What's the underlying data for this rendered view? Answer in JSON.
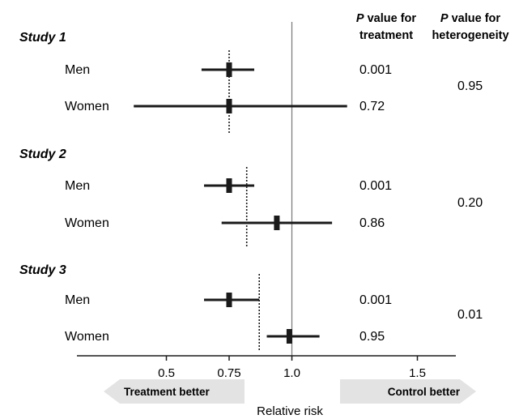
{
  "chart_data": {
    "type": "forest",
    "x_axis": {
      "label": "Relative risk",
      "ticks": [
        0.5,
        0.75,
        1.0,
        1.5
      ],
      "tick_labels": [
        "0.5",
        "0.75",
        "1.0",
        "1.5"
      ],
      "range": [
        0.25,
        1.65
      ],
      "reference_line": 1.0
    },
    "direction_labels": {
      "left": "Treatment better",
      "right": "Control better"
    },
    "column_headers": {
      "treatment": {
        "p": "P",
        "line1": " value for",
        "line2": "treatment"
      },
      "heterogeneity": {
        "p": "P",
        "line1": " value for",
        "line2": "heterogeneity"
      }
    },
    "studies": [
      {
        "title": "Study 1",
        "overall_estimate": 0.75,
        "p_heterogeneity": "0.95",
        "subgroups": [
          {
            "label": "Men",
            "estimate": 0.75,
            "ci_low": 0.64,
            "ci_high": 0.85,
            "p_treatment": "0.001"
          },
          {
            "label": "Women",
            "estimate": 0.75,
            "ci_low": 0.37,
            "ci_high": 1.22,
            "p_treatment": "0.72"
          }
        ]
      },
      {
        "title": "Study 2",
        "overall_estimate": 0.82,
        "p_heterogeneity": "0.20",
        "subgroups": [
          {
            "label": "Men",
            "estimate": 0.75,
            "ci_low": 0.65,
            "ci_high": 0.85,
            "p_treatment": "0.001"
          },
          {
            "label": "Women",
            "estimate": 0.94,
            "ci_low": 0.72,
            "ci_high": 1.16,
            "p_treatment": "0.86"
          }
        ]
      },
      {
        "title": "Study 3",
        "overall_estimate": 0.87,
        "p_heterogeneity": "0.01",
        "subgroups": [
          {
            "label": "Men",
            "estimate": 0.75,
            "ci_low": 0.65,
            "ci_high": 0.87,
            "p_treatment": "0.001"
          },
          {
            "label": "Women",
            "estimate": 0.99,
            "ci_low": 0.9,
            "ci_high": 1.11,
            "p_treatment": "0.95"
          }
        ]
      }
    ]
  },
  "colors": {
    "line": "#1a1a1a",
    "arrow_fill": "#e3e3e3",
    "reference_line": "#777777"
  }
}
